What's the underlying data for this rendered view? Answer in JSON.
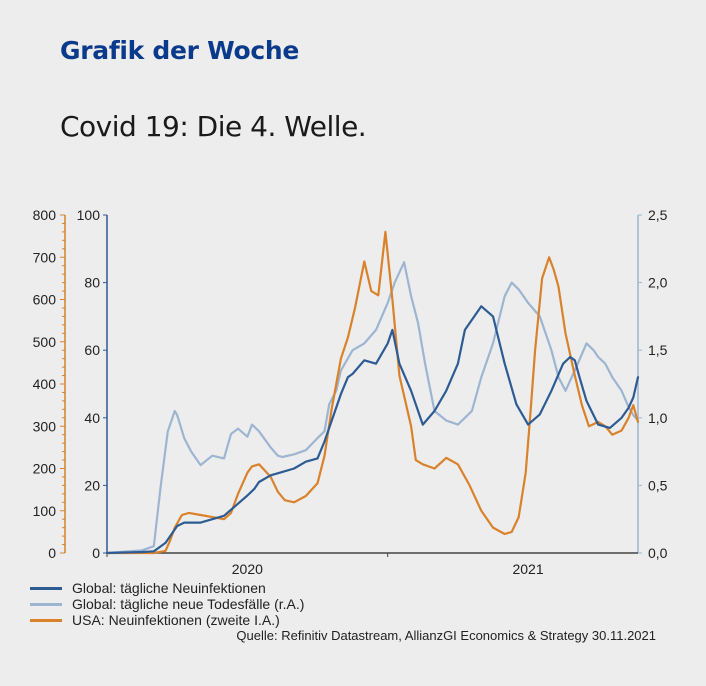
{
  "header": {
    "brand_title": "Grafik der Woche",
    "subtitle": "Covid 19: Die 4. Welle."
  },
  "chart_data": {
    "type": "line",
    "x_unit": "months since Jan 2020",
    "xlim": [
      0,
      22.7
    ],
    "x_ticks": [
      {
        "value": 6,
        "label": "2020"
      },
      {
        "value": 18,
        "label": "2021"
      }
    ],
    "x_boundary": 12,
    "axes": {
      "left_inner": {
        "ylim": [
          0,
          100
        ],
        "ticks": [
          "0",
          "20",
          "40",
          "60",
          "80",
          "100"
        ],
        "color": "#2d5b94"
      },
      "left_outer": {
        "ylim": [
          0,
          800
        ],
        "ticks": [
          "0",
          "100",
          "200",
          "300",
          "400",
          "500",
          "600",
          "700",
          "800"
        ],
        "color": "#d9822b"
      },
      "right": {
        "ylim": [
          0,
          2.5
        ],
        "ticks": [
          "0,0",
          "0,5",
          "1,0",
          "1,5",
          "2,0",
          "2,5"
        ],
        "color": "#9db5d1"
      }
    },
    "series": [
      {
        "name": "Global: tägliche Neuinfektionen",
        "axis": "left_inner",
        "color": "#2d5b94",
        "x": [
          0,
          1.5,
          2,
          2.5,
          2.8,
          3,
          3.3,
          4,
          4.5,
          5,
          5.5,
          6,
          6.3,
          6.5,
          7,
          7.5,
          8,
          8.5,
          9,
          9.3,
          9.5,
          10,
          10.3,
          10.5,
          11,
          11.5,
          12,
          12.2,
          12.5,
          13,
          13.5,
          14,
          14.5,
          15,
          15.3,
          15.7,
          16,
          16.5,
          17,
          17.5,
          18,
          18.5,
          19,
          19.5,
          19.8,
          20,
          20.2,
          20.5,
          21,
          21.5,
          22,
          22.3,
          22.5,
          22.7
        ],
        "y": [
          0,
          0.3,
          0.5,
          3,
          6,
          8,
          9,
          9,
          10,
          11,
          14,
          17,
          19,
          21,
          23,
          24,
          25,
          27,
          28,
          33,
          37,
          47,
          52,
          53,
          57,
          56,
          62,
          66,
          56,
          48,
          38,
          42,
          48,
          56,
          66,
          70,
          73,
          70,
          56,
          44,
          38,
          41,
          48,
          56,
          58,
          57,
          52,
          45,
          38,
          37,
          40,
          43,
          46,
          52
        ]
      },
      {
        "name": "Global: tägliche neue Todesfälle (r.A.)",
        "axis": "right",
        "color": "#9db5d1",
        "x": [
          0,
          1.5,
          2,
          2.3,
          2.6,
          2.9,
          3,
          3.3,
          3.6,
          4,
          4.5,
          5,
          5.3,
          5.6,
          6,
          6.2,
          6.5,
          7,
          7.3,
          7.5,
          8,
          8.5,
          9,
          9.3,
          9.5,
          9.8,
          10,
          10.5,
          11,
          11.5,
          12,
          12.3,
          12.7,
          13,
          13.3,
          13.6,
          14,
          14.5,
          15,
          15.3,
          15.6,
          16,
          16.5,
          17,
          17.3,
          17.6,
          18,
          18.5,
          19,
          19.3,
          19.6,
          20,
          20.5,
          20.8,
          21,
          21.3,
          21.6,
          22,
          22.3,
          22.5,
          22.7
        ],
        "y": [
          0,
          0.02,
          0.05,
          0.5,
          0.9,
          1.05,
          1.02,
          0.85,
          0.75,
          0.65,
          0.72,
          0.7,
          0.88,
          0.92,
          0.86,
          0.95,
          0.9,
          0.78,
          0.72,
          0.71,
          0.73,
          0.76,
          0.85,
          0.9,
          1.1,
          1.2,
          1.35,
          1.5,
          1.55,
          1.65,
          1.85,
          2.0,
          2.15,
          1.9,
          1.7,
          1.4,
          1.05,
          0.98,
          0.95,
          1.0,
          1.05,
          1.3,
          1.55,
          1.9,
          2.0,
          1.95,
          1.85,
          1.75,
          1.5,
          1.3,
          1.2,
          1.35,
          1.55,
          1.5,
          1.45,
          1.4,
          1.3,
          1.2,
          1.08,
          1.02,
          0.98
        ]
      },
      {
        "name": "USA: Neuinfektionen (zweite I.A.)",
        "axis": "left_outer",
        "color": "#d9822b",
        "x": [
          0,
          2,
          2.5,
          2.7,
          2.9,
          3.2,
          3.5,
          4,
          4.5,
          5,
          5.3,
          5.6,
          6,
          6.2,
          6.5,
          7,
          7.3,
          7.6,
          8,
          8.5,
          9,
          9.3,
          9.6,
          10,
          10.3,
          10.6,
          11,
          11.3,
          11.6,
          11.9,
          12.2,
          12.5,
          13,
          13.2,
          13.5,
          14,
          14.5,
          15,
          15.5,
          16,
          16.5,
          17,
          17.3,
          17.6,
          17.9,
          18.1,
          18.3,
          18.6,
          18.9,
          19.1,
          19.3,
          19.6,
          20,
          20.3,
          20.6,
          21,
          21.3,
          21.6,
          22,
          22.3,
          22.5,
          22.7
        ],
        "y": [
          0,
          0,
          5,
          30,
          60,
          90,
          95,
          90,
          85,
          80,
          95,
          140,
          190,
          205,
          210,
          180,
          145,
          125,
          120,
          135,
          165,
          230,
          340,
          460,
          510,
          580,
          690,
          620,
          610,
          760,
          600,
          420,
          300,
          220,
          210,
          200,
          225,
          210,
          160,
          100,
          60,
          45,
          50,
          85,
          190,
          330,
          480,
          650,
          700,
          670,
          630,
          520,
          420,
          350,
          300,
          310,
          300,
          280,
          290,
          320,
          350,
          310
        ]
      }
    ]
  },
  "legend": {
    "items": [
      {
        "label": "Global: tägliche Neuinfektionen",
        "color": "#2d5b94"
      },
      {
        "label": "Global: tägliche neue Todesfälle (r.A.)",
        "color": "#9db5d1"
      },
      {
        "label": "USA: Neuinfektionen (zweite I.A.)",
        "color": "#d9822b"
      }
    ]
  },
  "footer": {
    "source": "Quelle: Refinitiv Datastream, AllianzGI Economics & Strategy 30.11.2021"
  }
}
